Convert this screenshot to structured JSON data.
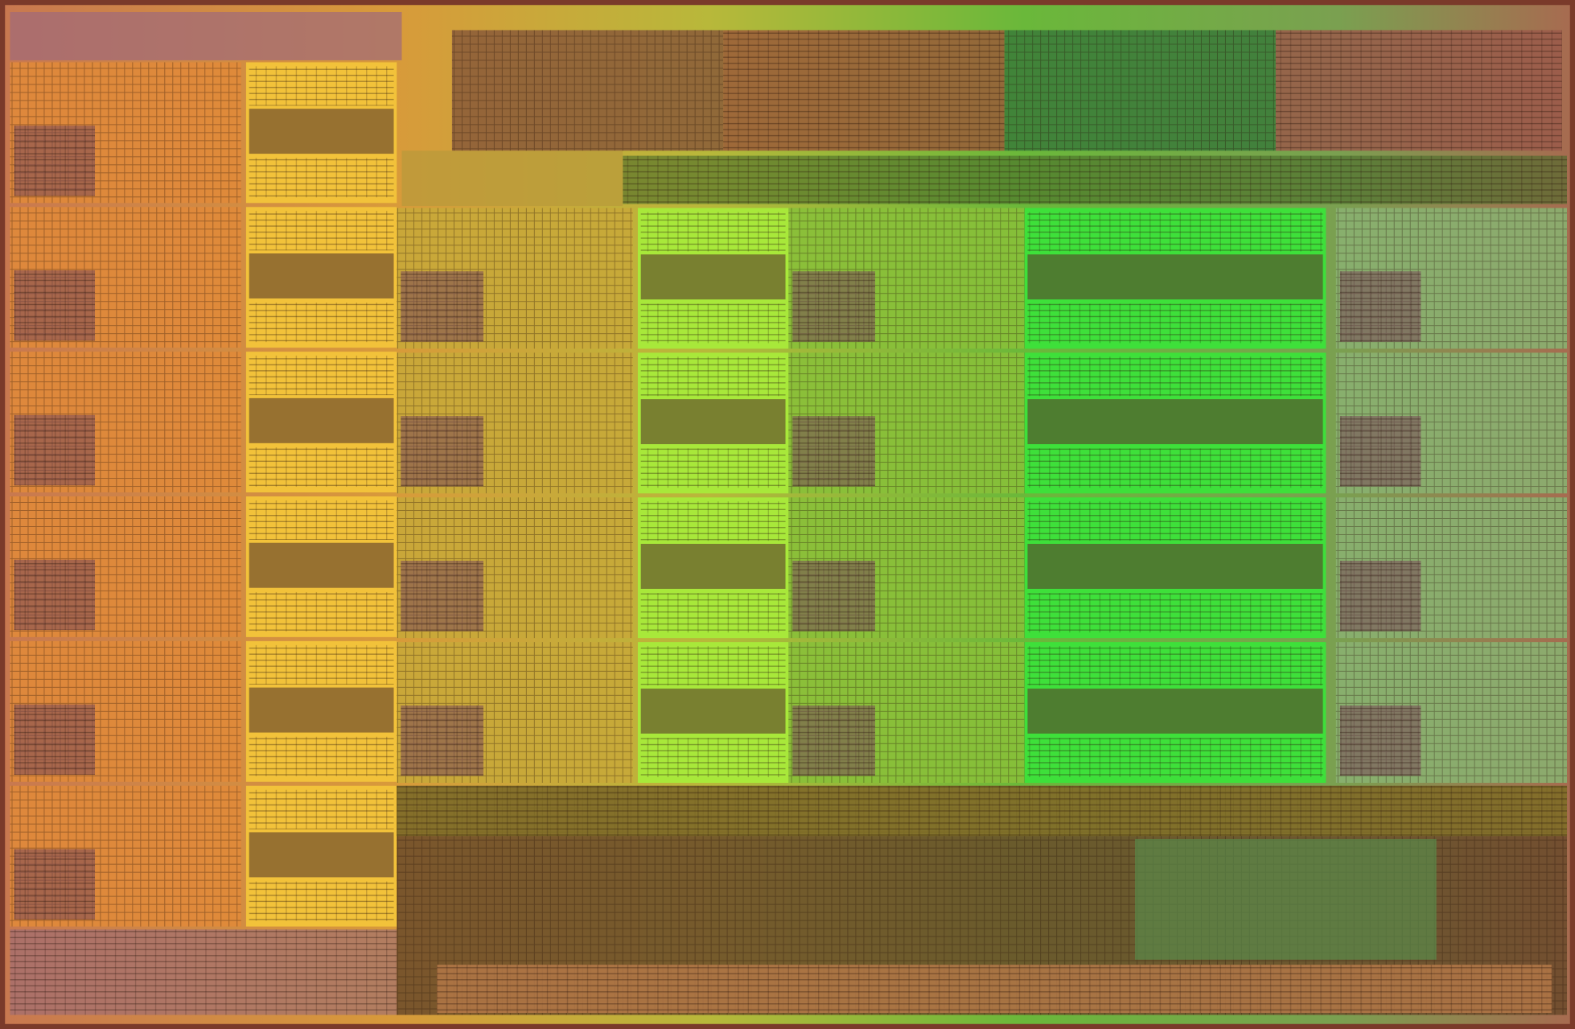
{
  "image": {
    "subject": "processor-die-photograph",
    "colors": {
      "edge": "#7a3a2a",
      "left": "#e08a3a",
      "orange_cache": "#f2c23a",
      "yellow": "#c8d83a",
      "yellow_cache": "#a8e83a",
      "green": "#58c83a",
      "green_cache": "#3ee03a",
      "right": "#a8a070",
      "uncore": "#6a4a2a",
      "top_dark": "#5a3a2a"
    },
    "core_grid": {
      "left_column_cores": 6,
      "middle_rows": 4,
      "middle_columns": 3
    }
  }
}
